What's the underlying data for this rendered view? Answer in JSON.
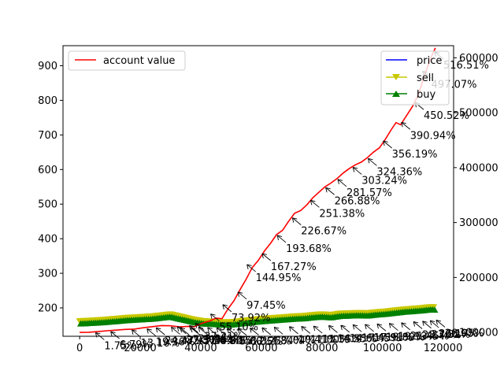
{
  "chart_data": {
    "type": "line",
    "x_axis": {
      "ticks": [
        0,
        20000,
        40000,
        60000,
        80000,
        100000,
        120000
      ],
      "tick_labels": [
        "0",
        "20000",
        "40000",
        "60000",
        "80000",
        "100000",
        "120000"
      ],
      "range": [
        -5500,
        123500
      ]
    },
    "y_left": {
      "ticks": [
        200,
        300,
        400,
        500,
        600,
        700,
        800,
        900
      ],
      "tick_labels": [
        "200",
        "300",
        "400",
        "500",
        "600",
        "700",
        "800",
        "900"
      ],
      "range": [
        118,
        958
      ]
    },
    "y_right": {
      "ticks": [
        100000,
        200000,
        300000,
        400000,
        500000,
        600000
      ],
      "tick_labels": [
        "100000",
        "200000",
        "300000",
        "400000",
        "500000",
        "600000"
      ],
      "range": [
        93000,
        622000
      ]
    },
    "series": [
      {
        "name": "account value",
        "axis": "right",
        "color": "#ff0000",
        "points": [
          [
            0,
            100000
          ],
          [
            3000,
            100300
          ],
          [
            6000,
            101500
          ],
          [
            9000,
            103000
          ],
          [
            12000,
            104200
          ],
          [
            15000,
            105500
          ],
          [
            18000,
            106000
          ],
          [
            21000,
            108500
          ],
          [
            24000,
            110500
          ],
          [
            27000,
            112500
          ],
          [
            30000,
            112000
          ],
          [
            33000,
            110000
          ],
          [
            36000,
            111000
          ],
          [
            38000,
            110500
          ],
          [
            40000,
            116000
          ],
          [
            43000,
            121000
          ],
          [
            45000,
            126000
          ],
          [
            47000,
            125000
          ],
          [
            49000,
            143000
          ],
          [
            51000,
            158000
          ],
          [
            53000,
            178000
          ],
          [
            55000,
            197000
          ],
          [
            57000,
            218000
          ],
          [
            59000,
            231000
          ],
          [
            61000,
            248000
          ],
          [
            63000,
            262000
          ],
          [
            65000,
            278000
          ],
          [
            67000,
            286000
          ],
          [
            69000,
            302000
          ],
          [
            71000,
            317000
          ],
          [
            73000,
            322000
          ],
          [
            75000,
            332000
          ],
          [
            77000,
            345000
          ],
          [
            79000,
            355000
          ],
          [
            81000,
            365000
          ],
          [
            83000,
            372000
          ],
          [
            85000,
            380000
          ],
          [
            87000,
            390000
          ],
          [
            89000,
            398000
          ],
          [
            91000,
            405000
          ],
          [
            93000,
            410000
          ],
          [
            95000,
            418000
          ],
          [
            97000,
            428000
          ],
          [
            99000,
            436000
          ],
          [
            101000,
            452000
          ],
          [
            103000,
            470000
          ],
          [
            104500,
            482000
          ],
          [
            106000,
            478000
          ],
          [
            108000,
            495000
          ],
          [
            110000,
            512000
          ],
          [
            112000,
            535000
          ],
          [
            114000,
            570000
          ],
          [
            116000,
            600000
          ],
          [
            117500,
            618000
          ]
        ]
      },
      {
        "name": "price",
        "axis": "left",
        "color": "#0000ff",
        "points": [
          [
            0,
            158
          ],
          [
            4000,
            160
          ],
          [
            8000,
            162
          ],
          [
            12000,
            165
          ],
          [
            16000,
            168
          ],
          [
            20000,
            170
          ],
          [
            24000,
            172
          ],
          [
            28000,
            176
          ],
          [
            30000,
            178
          ],
          [
            32000,
            174
          ],
          [
            35000,
            168
          ],
          [
            38000,
            162
          ],
          [
            41000,
            158
          ],
          [
            44000,
            157
          ],
          [
            47000,
            155
          ],
          [
            50000,
            155
          ],
          [
            53000,
            158
          ],
          [
            56000,
            161
          ],
          [
            59000,
            164
          ],
          [
            62000,
            166
          ],
          [
            65000,
            168
          ],
          [
            68000,
            170
          ],
          [
            71000,
            172
          ],
          [
            74000,
            173
          ],
          [
            77000,
            176
          ],
          [
            80000,
            178
          ],
          [
            83000,
            176
          ],
          [
            86000,
            180
          ],
          [
            89000,
            181
          ],
          [
            92000,
            182
          ],
          [
            95000,
            181
          ],
          [
            98000,
            184
          ],
          [
            101000,
            186
          ],
          [
            104000,
            189
          ],
          [
            107000,
            192
          ],
          [
            110000,
            194
          ],
          [
            113000,
            196
          ],
          [
            116000,
            199
          ],
          [
            117500,
            198
          ]
        ]
      },
      {
        "name": "sell",
        "axis": "left",
        "color": "#c8c800",
        "marker": "triangle-down"
      },
      {
        "name": "buy",
        "axis": "left",
        "color": "#008000",
        "marker": "triangle-up"
      }
    ],
    "annotations": [
      {
        "text": "516.51%",
        "x": 117000,
        "y": 612000
      },
      {
        "text": "497.07%",
        "x": 113000,
        "y": 577000
      },
      {
        "text": "450.52%",
        "x": 110500,
        "y": 520000
      },
      {
        "text": "390.94%",
        "x": 106000,
        "y": 484000
      },
      {
        "text": "356.19%",
        "x": 100000,
        "y": 450000
      },
      {
        "text": "324.36%",
        "x": 95000,
        "y": 418000
      },
      {
        "text": "303.24%",
        "x": 90000,
        "y": 402000
      },
      {
        "text": "281.57%",
        "x": 85000,
        "y": 380000
      },
      {
        "text": "266.88%",
        "x": 81000,
        "y": 365000
      },
      {
        "text": "251.38%",
        "x": 76000,
        "y": 342000
      },
      {
        "text": "226.67%",
        "x": 70000,
        "y": 310000
      },
      {
        "text": "193.68%",
        "x": 65000,
        "y": 278000
      },
      {
        "text": "167.27%",
        "x": 60000,
        "y": 245000
      },
      {
        "text": "144.95%",
        "x": 55000,
        "y": 225000
      },
      {
        "text": "97.45%",
        "x": 52000,
        "y": 175000
      },
      {
        "text": "73.92%",
        "x": 47000,
        "y": 152000
      },
      {
        "text": "55.10%",
        "x": 43000,
        "y": 135000
      },
      {
        "text": "37.21%",
        "x": 38000,
        "y": 118000
      },
      {
        "text": "29.95%",
        "x": 36000,
        "y": 114000
      },
      {
        "text": "27.30%",
        "x": 32000,
        "y": 112000
      },
      {
        "text": "23.93%",
        "x": 30000,
        "y": 111000
      },
      {
        "text": "24.47%",
        "x": 25000,
        "y": 110000
      },
      {
        "text": "19.36%",
        "x": 22000,
        "y": 108000
      },
      {
        "text": "13.10%",
        "x": 17000,
        "y": 106000
      },
      {
        "text": "6.79%",
        "x": 10000,
        "y": 103000
      },
      {
        "text": "1.75%",
        "x": 5000,
        "y": 101000
      },
      {
        "text": "-2.57%",
        "x": 33000,
        "y": 110000
      },
      {
        "text": "-3.34%",
        "x": 36500,
        "y": 110000
      },
      {
        "text": "-5.44%",
        "x": 39000,
        "y": 111000
      },
      {
        "text": "-8.60%",
        "x": 42000,
        "y": 110500
      },
      {
        "text": "-8.85%",
        "x": 45000,
        "y": 110000
      },
      {
        "text": "-5.00%",
        "x": 48500,
        "y": 109500
      },
      {
        "text": "-6.05%",
        "x": 52000,
        "y": 109000
      },
      {
        "text": "2.25%",
        "x": 56000,
        "y": 109500
      },
      {
        "text": "4.84%",
        "x": 60000,
        "y": 110000
      },
      {
        "text": "7.04%",
        "x": 64000,
        "y": 111000
      },
      {
        "text": "10.41%",
        "x": 69000,
        "y": 112000
      },
      {
        "text": "11.00%",
        "x": 73000,
        "y": 112500
      },
      {
        "text": "11.55%",
        "x": 77000,
        "y": 113000
      },
      {
        "text": "14.55%",
        "x": 82000,
        "y": 114000
      },
      {
        "text": "14.60%",
        "x": 86000,
        "y": 114500
      },
      {
        "text": "17.45%",
        "x": 90000,
        "y": 115500
      },
      {
        "text": "17.91%",
        "x": 94000,
        "y": 116000
      },
      {
        "text": "18.80%",
        "x": 98000,
        "y": 117000
      },
      {
        "text": "19.13%",
        "x": 102000,
        "y": 118000
      },
      {
        "text": "21.45%",
        "x": 106000,
        "y": 119000
      },
      {
        "text": "23.70%",
        "x": 110000,
        "y": 121000
      },
      {
        "text": "23.82%",
        "x": 113000,
        "y": 122000
      },
      {
        "text": "26.17%",
        "x": 115500,
        "y": 123000
      },
      {
        "text": "28.95%",
        "x": 117500,
        "y": 124000
      }
    ],
    "legends": [
      {
        "placement": "upper-left",
        "entries": [
          "account value"
        ]
      },
      {
        "placement": "upper-right",
        "entries": [
          "price",
          "sell",
          "buy"
        ]
      }
    ],
    "grid": false
  }
}
